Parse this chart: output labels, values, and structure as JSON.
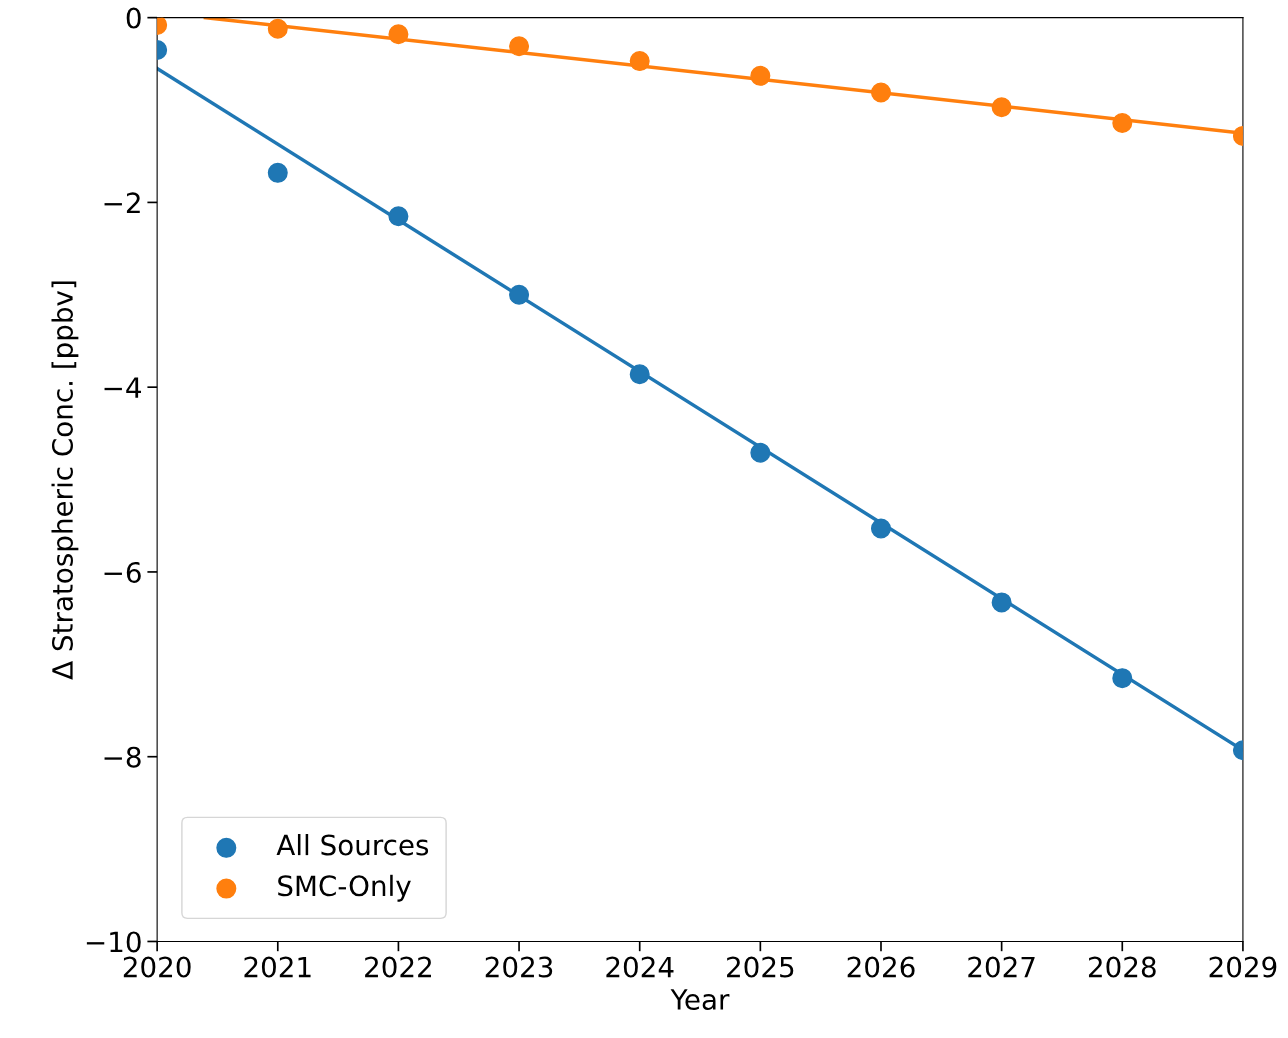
{
  "chart_data": {
    "type": "scatter",
    "xlabel": "Year",
    "ylabel": "Δ Stratospheric Conc. [ppbv]",
    "x": [
      2020,
      2021,
      2022,
      2023,
      2024,
      2025,
      2026,
      2027,
      2028,
      2029
    ],
    "series": [
      {
        "name": "All Sources",
        "color": "#1f77b4",
        "marker": "circle",
        "values": [
          -0.35,
          -1.68,
          -2.15,
          -3.0,
          -3.86,
          -4.71,
          -5.53,
          -6.33,
          -7.15,
          -7.93
        ]
      },
      {
        "name": "SMC-Only",
        "color": "#ff7f0e",
        "marker": "circle",
        "values": [
          -0.08,
          -0.12,
          -0.18,
          -0.31,
          -0.47,
          -0.63,
          -0.81,
          -0.97,
          -1.14,
          -1.28
        ]
      },
      {
        "type": "line",
        "color": "#1f77b4",
        "marker": "none",
        "x": [
          2020,
          2029
        ],
        "values": [
          -0.55,
          -7.93
        ]
      },
      {
        "type": "line",
        "color": "#ff7f0e",
        "marker": "none",
        "x": [
          2020.4,
          2029
        ],
        "values": [
          0,
          -1.25
        ]
      }
    ],
    "xlim": [
      2020,
      2029
    ],
    "xticks": [
      2020,
      2021,
      2022,
      2023,
      2024,
      2025,
      2026,
      2027,
      2028,
      2029
    ],
    "ylim": [
      -10,
      0
    ],
    "yticks": [
      -10,
      -8,
      -6,
      -4,
      -2,
      0
    ],
    "legend": "bottom left",
    "grid": false
  }
}
